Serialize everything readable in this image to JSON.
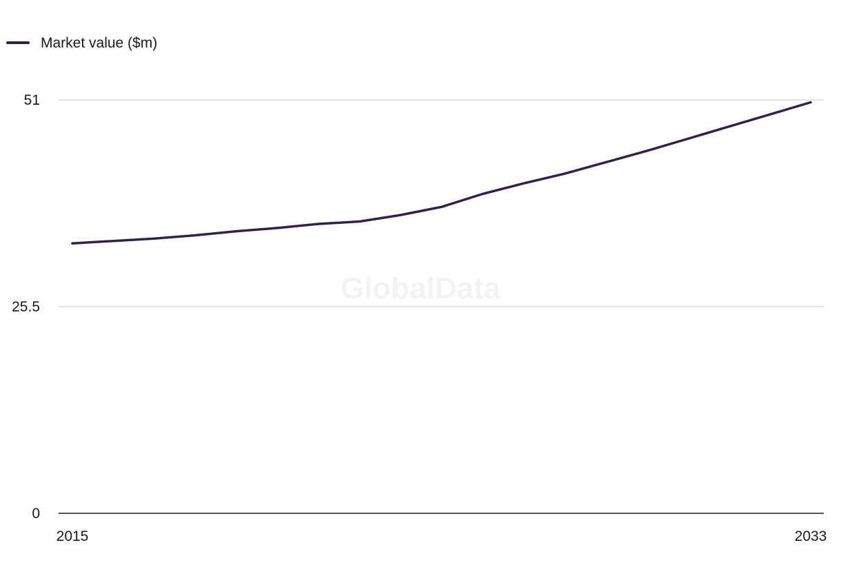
{
  "watermark": "GlobalData",
  "chart_data": {
    "type": "line",
    "title": "",
    "xlabel": "",
    "ylabel": "",
    "x": [
      2015,
      2016,
      2017,
      2018,
      2019,
      2020,
      2021,
      2022,
      2023,
      2024,
      2025,
      2026,
      2027,
      2028,
      2029,
      2030,
      2031,
      2032,
      2033
    ],
    "series": [
      {
        "name": "Market value ($m)",
        "color": "#32204f",
        "values": [
          33.3,
          33.6,
          33.9,
          34.3,
          34.8,
          35.2,
          35.7,
          36.0,
          36.8,
          37.8,
          39.4,
          40.7,
          41.9,
          43.3,
          44.7,
          46.2,
          47.7,
          49.2,
          50.7
        ]
      }
    ],
    "ylim": [
      0,
      51
    ],
    "yticks": [
      "0",
      "25.5",
      "51"
    ],
    "xticks": [
      "2015",
      "2033"
    ],
    "grid": "horizontal",
    "legend_position": "top-left",
    "colors": {
      "line": "#32204f",
      "grid": "#d9d9d9",
      "axis": "#1a1a1a"
    }
  }
}
